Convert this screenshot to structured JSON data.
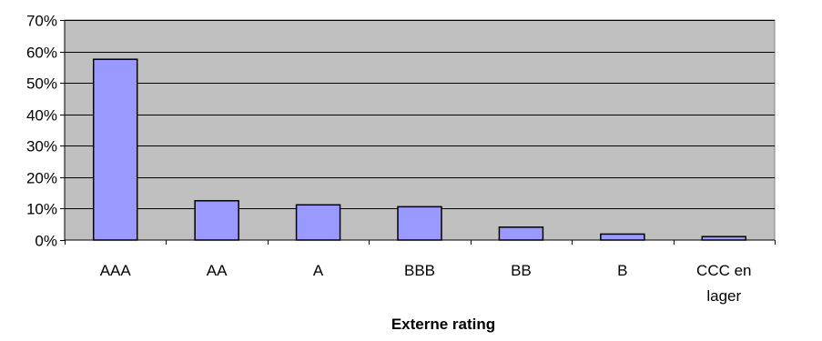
{
  "chart_data": {
    "type": "bar",
    "title": "",
    "xlabel": "Externe rating",
    "ylabel": "",
    "categories": [
      "AAA",
      "AA",
      "A",
      "BBB",
      "BB",
      "B",
      "CCC en lager"
    ],
    "category_lines": [
      [
        "AAA"
      ],
      [
        "AA"
      ],
      [
        "A"
      ],
      [
        "BBB"
      ],
      [
        "BB"
      ],
      [
        "B"
      ],
      [
        "CCC en",
        "lager"
      ]
    ],
    "values": [
      0.575,
      0.125,
      0.112,
      0.106,
      0.041,
      0.019,
      0.011
    ],
    "ylim": [
      0,
      0.7
    ],
    "yticks": [
      0,
      0.1,
      0.2,
      0.3,
      0.4,
      0.5,
      0.6,
      0.7
    ],
    "ytick_labels": [
      "0%",
      "10%",
      "20%",
      "30%",
      "40%",
      "50%",
      "60%",
      "70%"
    ],
    "grid": true,
    "colors": {
      "plot_background": "#c0c0c0",
      "bar_fill": "#9999ff",
      "bar_stroke": "#000000",
      "grid_line": "#000000"
    }
  }
}
